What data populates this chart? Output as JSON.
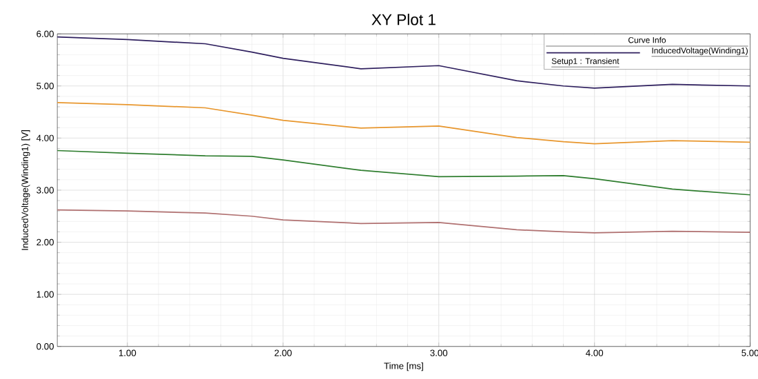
{
  "chart_data": {
    "type": "line",
    "title": "XY Plot 1",
    "xlabel": "Time [ms]",
    "ylabel": "InducedVoltage(Winding1) [V]",
    "legend_title": "Curve Info",
    "annotations": [
      "Setup1 : Transient"
    ],
    "x": [
      0.55,
      1.0,
      1.5,
      1.8,
      2.0,
      2.5,
      3.0,
      3.5,
      3.8,
      4.0,
      4.5,
      5.0
    ],
    "series": [
      {
        "name": "InducedVoltage(Winding1)",
        "color": "#2e1f5e",
        "values": [
          5.94,
          5.89,
          5.81,
          5.65,
          5.53,
          5.33,
          5.39,
          5.1,
          5.0,
          4.96,
          5.03,
          5.0
        ]
      },
      {
        "color": "#e8962c",
        "values": [
          4.68,
          4.64,
          4.58,
          4.44,
          4.34,
          4.19,
          4.23,
          4.01,
          3.93,
          3.89,
          3.95,
          3.92
        ]
      },
      {
        "color": "#2e7d2e",
        "values": [
          3.76,
          3.71,
          3.66,
          3.65,
          3.58,
          3.38,
          3.26,
          3.27,
          3.28,
          3.22,
          3.02,
          2.91
        ]
      },
      {
        "color": "#b07070",
        "values": [
          2.62,
          2.6,
          2.56,
          2.5,
          2.43,
          2.36,
          2.38,
          2.24,
          2.2,
          2.18,
          2.21,
          2.19
        ]
      }
    ],
    "xlim": [
      0.55,
      5.0
    ],
    "ylim": [
      0,
      6
    ],
    "xticks": [
      {
        "value": 1,
        "label": "1.00"
      },
      {
        "value": 2,
        "label": "2.00"
      },
      {
        "value": 3,
        "label": "3.00"
      },
      {
        "value": 4,
        "label": "4.00"
      },
      {
        "value": 5,
        "label": "5.00"
      }
    ],
    "yticks": [
      {
        "value": 0,
        "label": "0.00"
      },
      {
        "value": 1,
        "label": "1.00"
      },
      {
        "value": 2,
        "label": "2.00"
      },
      {
        "value": 3,
        "label": "3.00"
      },
      {
        "value": 4,
        "label": "4.00"
      },
      {
        "value": 5,
        "label": "5.00"
      },
      {
        "value": 6,
        "label": "6.00"
      }
    ],
    "grid": true,
    "legend": "top right",
    "marker": "none",
    "line_style": "solid"
  }
}
